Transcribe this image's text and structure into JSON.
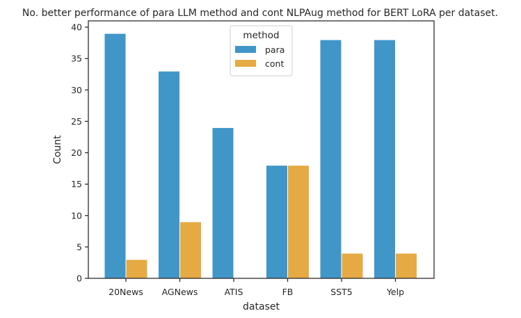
{
  "chart_data": {
    "type": "bar",
    "title": "No. better performance of para LLM method and cont NLPAug method for BERT LoRA per dataset.",
    "xlabel": "dataset",
    "ylabel": "Count",
    "ylim": [
      0,
      41
    ],
    "yticks": [
      0,
      5,
      10,
      15,
      20,
      25,
      30,
      35,
      40
    ],
    "categories": [
      "20News",
      "AGNews",
      "ATIS",
      "FB",
      "SST5",
      "Yelp"
    ],
    "series": [
      {
        "name": "para",
        "color": "#4196c8",
        "values": [
          39,
          33,
          24,
          18,
          38,
          38
        ]
      },
      {
        "name": "cont",
        "color": "#e6aa44",
        "values": [
          3,
          9,
          0,
          18,
          4,
          4
        ]
      }
    ],
    "legend": {
      "title": "method",
      "placement": "top-center"
    },
    "grid": false
  }
}
